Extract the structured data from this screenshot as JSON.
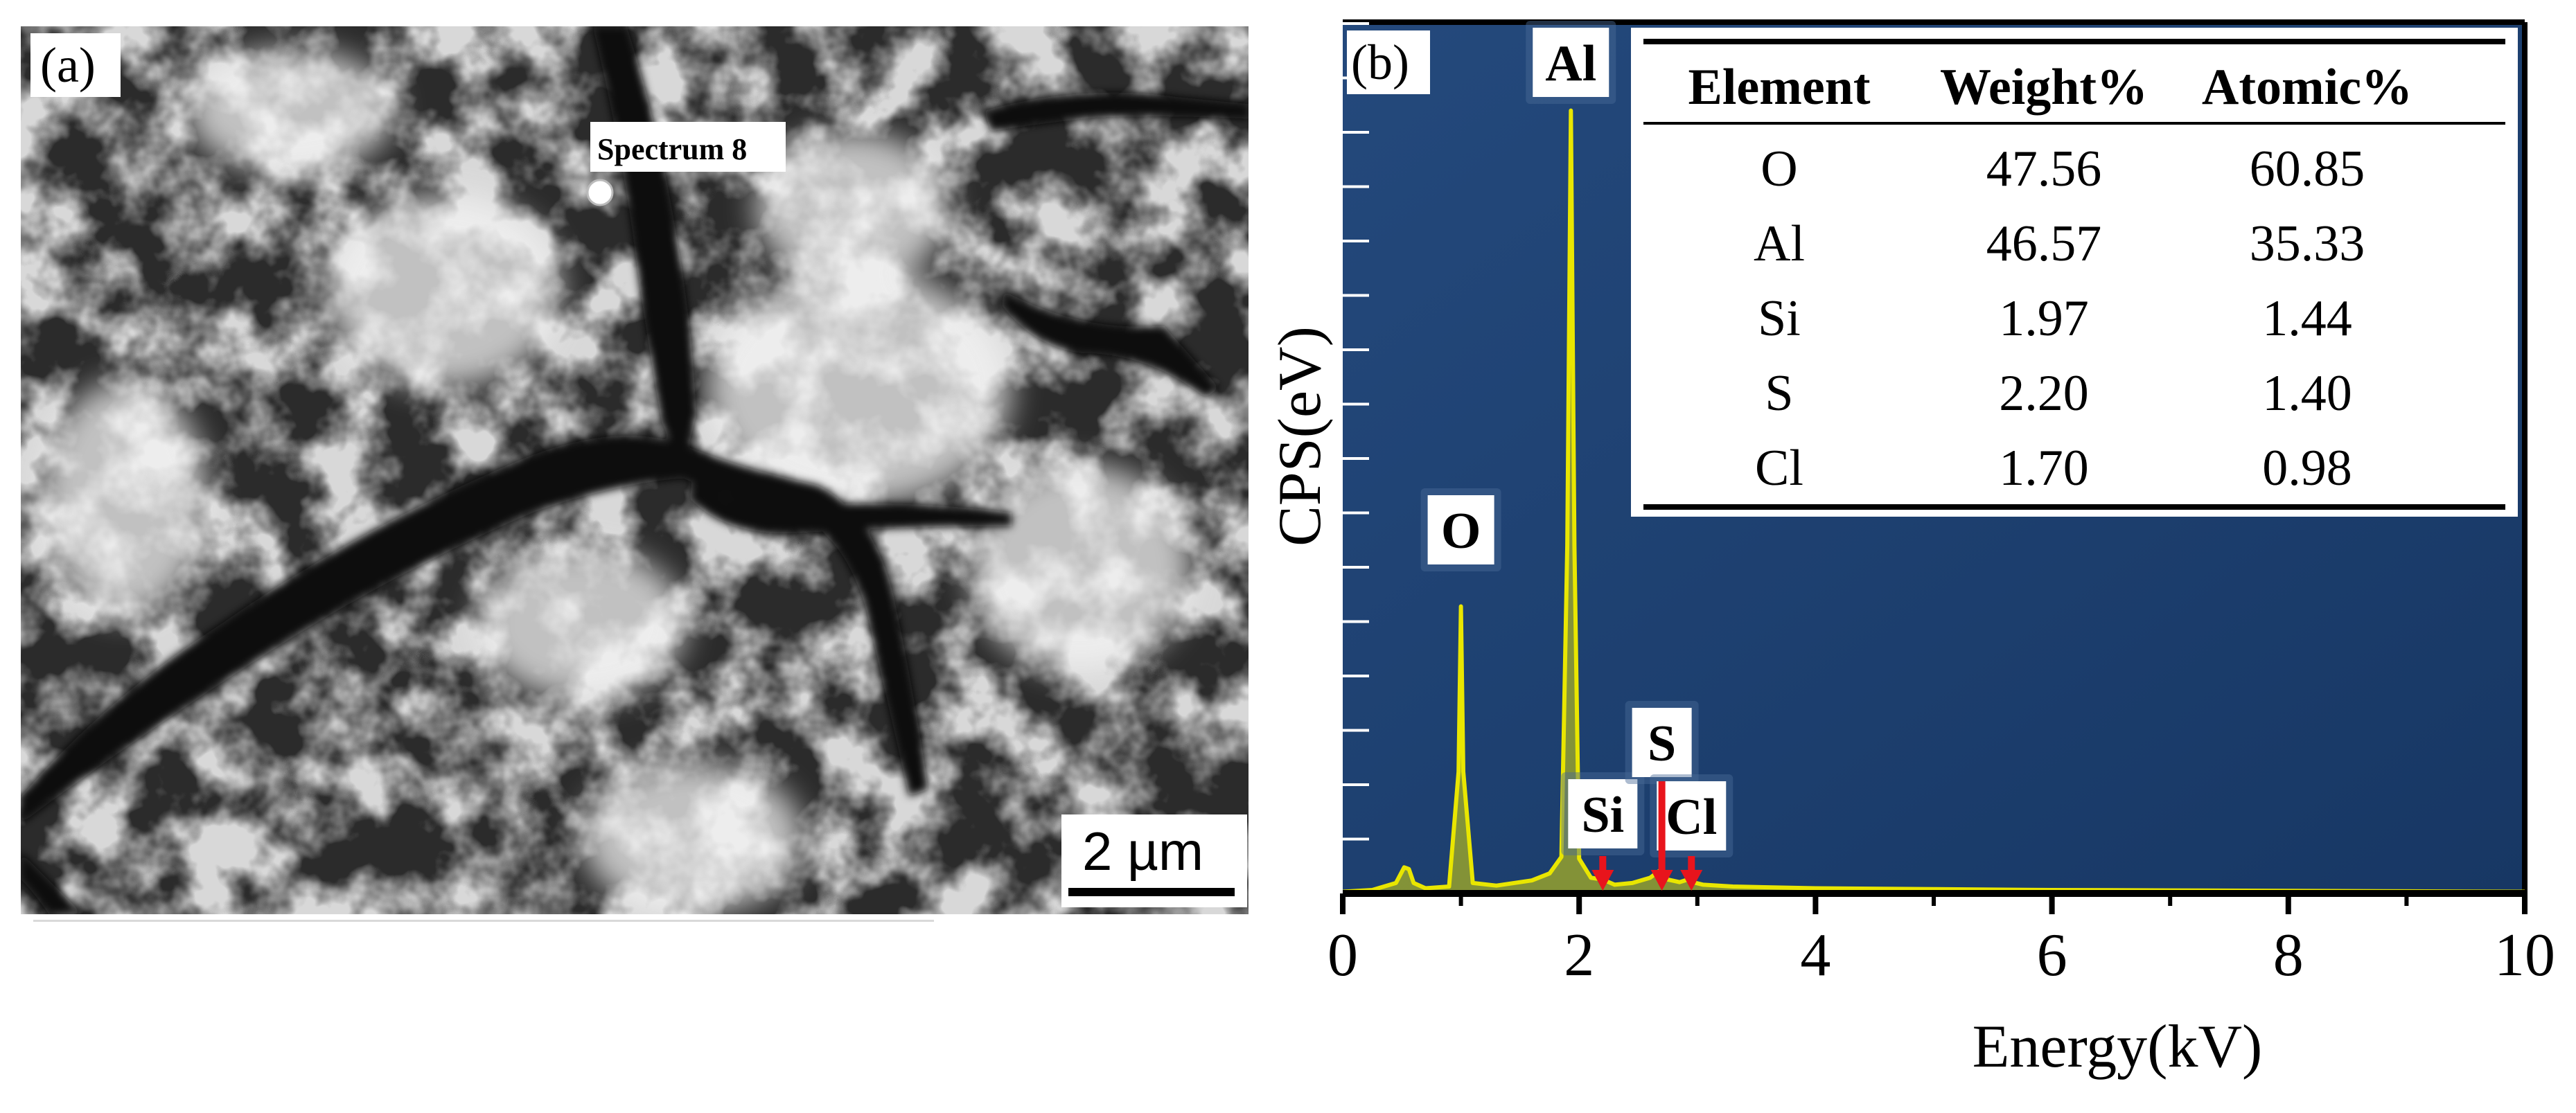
{
  "panel_a": {
    "label": "(a)",
    "spot_label": "Spectrum 8",
    "scale_bar_label": "2 µm"
  },
  "panel_b": {
    "label": "(b)"
  },
  "colors": {
    "plot_background": "#1f4577",
    "spectrum_line": "#e9e600",
    "arrow": "#e8141c",
    "axis": "#000000",
    "sem_dark": "#0a0a0a",
    "sem_bright": "#f2f2f2"
  },
  "chart_data": {
    "type": "line",
    "xlabel": "Energy(kV)",
    "ylabel": "CPS(eV)",
    "xlim": [
      0,
      10
    ],
    "ylim": [
      0,
      100
    ],
    "x_ticks": [
      "0",
      "2",
      "4",
      "6",
      "8",
      "10"
    ],
    "grid": false,
    "series": [
      {
        "x": [
          0.0,
          0.25,
          0.45,
          0.52,
          0.56,
          0.6,
          0.7,
          0.9,
          0.98,
          1.0,
          1.02,
          1.1,
          1.3,
          1.6,
          1.75,
          1.85,
          1.9,
          1.93,
          1.96,
          2.0,
          2.1,
          2.2,
          2.3,
          2.45,
          2.6,
          2.68,
          2.75,
          2.85,
          2.92,
          2.96,
          3.05,
          3.3,
          4.0,
          5.0,
          6.0,
          7.0,
          8.0,
          9.0,
          10.0
        ],
        "y": [
          0.2,
          0.4,
          1.2,
          3.0,
          2.8,
          1.2,
          0.6,
          0.8,
          14.0,
          33.0,
          14.0,
          1.2,
          0.9,
          1.5,
          2.3,
          4.2,
          40.0,
          90.0,
          40.0,
          4.0,
          1.8,
          1.6,
          1.0,
          1.2,
          1.8,
          2.6,
          1.6,
          1.3,
          1.6,
          1.3,
          1.0,
          0.8,
          0.6,
          0.5,
          0.4,
          0.35,
          0.3,
          0.25,
          0.2
        ]
      }
    ],
    "peak_labels": [
      {
        "label": "O",
        "x": 1.0,
        "y": 33
      },
      {
        "label": "Al",
        "x": 1.93,
        "y": 90
      },
      {
        "label": "Si",
        "x": 2.2,
        "y": 1.6
      },
      {
        "label": "S",
        "x": 2.7,
        "y": 2.6
      },
      {
        "label": "Cl",
        "x": 2.95,
        "y": 1.6
      }
    ],
    "table": {
      "columns": [
        "Element",
        "Weight%",
        "Atomic%"
      ],
      "rows": [
        [
          "O",
          "47.56",
          "60.85"
        ],
        [
          "Al",
          "46.57",
          "35.33"
        ],
        [
          "Si",
          "1.97",
          "1.44"
        ],
        [
          "S",
          "2.20",
          "1.40"
        ],
        [
          "Cl",
          "1.70",
          "0.98"
        ]
      ]
    }
  }
}
